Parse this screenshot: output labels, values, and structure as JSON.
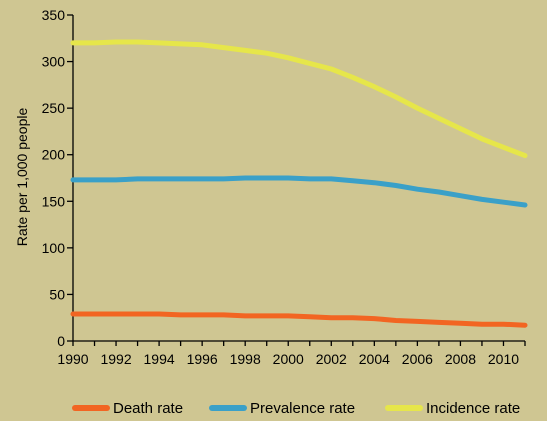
{
  "chart_data": {
    "type": "line",
    "title": "",
    "xlabel": "",
    "ylabel": "Rate per 1,000 people",
    "ylim": [
      0,
      350
    ],
    "xlim": [
      1990,
      2011
    ],
    "y_ticks": [
      0,
      50,
      100,
      150,
      200,
      250,
      300,
      350
    ],
    "x_tick_labels": [
      "1990",
      "1992",
      "1994",
      "1996",
      "1998",
      "2000",
      "2002",
      "2004",
      "2006",
      "2008",
      "2010"
    ],
    "grid": false,
    "legend_position": "bottom",
    "x": [
      1990,
      1991,
      1992,
      1993,
      1994,
      1995,
      1996,
      1997,
      1998,
      1999,
      2000,
      2001,
      2002,
      2003,
      2004,
      2005,
      2006,
      2007,
      2008,
      2009,
      2010,
      2011
    ],
    "series": [
      {
        "name": "Death rate",
        "color": "#f26522",
        "values": [
          29,
          29,
          29,
          29,
          29,
          28,
          28,
          28,
          27,
          27,
          27,
          26,
          25,
          25,
          24,
          22,
          21,
          20,
          19,
          18,
          18,
          17
        ]
      },
      {
        "name": "Prevalence rate",
        "color": "#3aa0c8",
        "values": [
          173,
          173,
          173,
          174,
          174,
          174,
          174,
          174,
          175,
          175,
          175,
          174,
          174,
          172,
          170,
          167,
          163,
          160,
          156,
          152,
          149,
          146
        ]
      },
      {
        "name": "Incidence rate",
        "color": "#e6e64a",
        "values": [
          320,
          320,
          321,
          321,
          320,
          319,
          318,
          315,
          312,
          309,
          304,
          298,
          292,
          283,
          273,
          262,
          250,
          239,
          228,
          217,
          208,
          199
        ]
      }
    ]
  }
}
